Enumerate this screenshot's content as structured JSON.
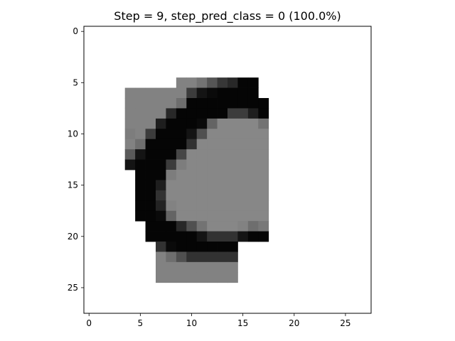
{
  "chart_data": {
    "type": "heatmap",
    "title": "Step = 9, step_pred_class = 0 (100.0%)",
    "xlabel": "",
    "ylabel": "",
    "xlim": [
      -0.5,
      27.5
    ],
    "ylim": [
      27.5,
      -0.5
    ],
    "x_ticks": [
      0,
      5,
      10,
      15,
      20,
      25
    ],
    "y_ticks": [
      0,
      5,
      10,
      15,
      20,
      25
    ],
    "grid": false,
    "colormap": "gray_r",
    "blank_color": "#ffffff",
    "rows": 28,
    "cols": 28,
    "comment_pixels": "each entry is [row, col, gray_value 0-255]; unspecified cells are blank/white",
    "pixels": [
      [
        5,
        9,
        130
      ],
      [
        5,
        10,
        130
      ],
      [
        5,
        11,
        115
      ],
      [
        5,
        12,
        85
      ],
      [
        5,
        13,
        55
      ],
      [
        5,
        14,
        40
      ],
      [
        5,
        15,
        5
      ],
      [
        5,
        16,
        5
      ],
      [
        6,
        4,
        130
      ],
      [
        6,
        5,
        130
      ],
      [
        6,
        6,
        130
      ],
      [
        6,
        7,
        130
      ],
      [
        6,
        8,
        130
      ],
      [
        6,
        9,
        130
      ],
      [
        6,
        10,
        60
      ],
      [
        6,
        11,
        20
      ],
      [
        6,
        12,
        10
      ],
      [
        6,
        13,
        5
      ],
      [
        6,
        14,
        5
      ],
      [
        6,
        15,
        5
      ],
      [
        6,
        16,
        5
      ],
      [
        7,
        4,
        130
      ],
      [
        7,
        5,
        130
      ],
      [
        7,
        6,
        130
      ],
      [
        7,
        7,
        130
      ],
      [
        7,
        8,
        130
      ],
      [
        7,
        9,
        110
      ],
      [
        7,
        10,
        5
      ],
      [
        7,
        11,
        5
      ],
      [
        7,
        12,
        5
      ],
      [
        7,
        13,
        5
      ],
      [
        7,
        14,
        5
      ],
      [
        7,
        15,
        5
      ],
      [
        7,
        16,
        5
      ],
      [
        7,
        17,
        5
      ],
      [
        8,
        4,
        130
      ],
      [
        8,
        5,
        130
      ],
      [
        8,
        6,
        130
      ],
      [
        8,
        7,
        130
      ],
      [
        8,
        8,
        40
      ],
      [
        8,
        9,
        5
      ],
      [
        8,
        10,
        5
      ],
      [
        8,
        11,
        5
      ],
      [
        8,
        12,
        5
      ],
      [
        8,
        13,
        5
      ],
      [
        8,
        14,
        60
      ],
      [
        8,
        15,
        60
      ],
      [
        8,
        16,
        30
      ],
      [
        8,
        17,
        5
      ],
      [
        9,
        4,
        130
      ],
      [
        9,
        5,
        130
      ],
      [
        9,
        6,
        130
      ],
      [
        9,
        7,
        30
      ],
      [
        9,
        8,
        5
      ],
      [
        9,
        9,
        5
      ],
      [
        9,
        10,
        5
      ],
      [
        9,
        11,
        10
      ],
      [
        9,
        12,
        100
      ],
      [
        9,
        13,
        135
      ],
      [
        9,
        14,
        135
      ],
      [
        9,
        15,
        135
      ],
      [
        9,
        16,
        135
      ],
      [
        9,
        17,
        115
      ],
      [
        10,
        4,
        125
      ],
      [
        10,
        5,
        130
      ],
      [
        10,
        6,
        60
      ],
      [
        10,
        7,
        5
      ],
      [
        10,
        8,
        5
      ],
      [
        10,
        9,
        5
      ],
      [
        10,
        10,
        20
      ],
      [
        10,
        11,
        80
      ],
      [
        10,
        12,
        135
      ],
      [
        10,
        13,
        135
      ],
      [
        10,
        14,
        135
      ],
      [
        10,
        15,
        135
      ],
      [
        10,
        16,
        135
      ],
      [
        10,
        17,
        135
      ],
      [
        11,
        4,
        130
      ],
      [
        11,
        5,
        110
      ],
      [
        11,
        6,
        5
      ],
      [
        11,
        7,
        5
      ],
      [
        11,
        8,
        5
      ],
      [
        11,
        9,
        5
      ],
      [
        11,
        10,
        50
      ],
      [
        11,
        11,
        135
      ],
      [
        11,
        12,
        135
      ],
      [
        11,
        13,
        135
      ],
      [
        11,
        14,
        135
      ],
      [
        11,
        15,
        135
      ],
      [
        11,
        16,
        135
      ],
      [
        11,
        17,
        135
      ],
      [
        12,
        4,
        90
      ],
      [
        12,
        5,
        20
      ],
      [
        12,
        6,
        5
      ],
      [
        12,
        7,
        5
      ],
      [
        12,
        8,
        5
      ],
      [
        12,
        9,
        70
      ],
      [
        12,
        10,
        135
      ],
      [
        12,
        11,
        135
      ],
      [
        12,
        12,
        135
      ],
      [
        12,
        13,
        135
      ],
      [
        12,
        14,
        135
      ],
      [
        12,
        15,
        135
      ],
      [
        12,
        16,
        135
      ],
      [
        12,
        17,
        135
      ],
      [
        13,
        4,
        20
      ],
      [
        13,
        5,
        5
      ],
      [
        13,
        6,
        5
      ],
      [
        13,
        7,
        5
      ],
      [
        13,
        8,
        60
      ],
      [
        13,
        9,
        125
      ],
      [
        13,
        10,
        135
      ],
      [
        13,
        11,
        135
      ],
      [
        13,
        12,
        135
      ],
      [
        13,
        13,
        135
      ],
      [
        13,
        14,
        135
      ],
      [
        13,
        15,
        135
      ],
      [
        13,
        16,
        135
      ],
      [
        13,
        17,
        135
      ],
      [
        14,
        5,
        5
      ],
      [
        14,
        6,
        5
      ],
      [
        14,
        7,
        5
      ],
      [
        14,
        8,
        125
      ],
      [
        14,
        9,
        135
      ],
      [
        14,
        10,
        135
      ],
      [
        14,
        11,
        135
      ],
      [
        14,
        12,
        135
      ],
      [
        14,
        13,
        135
      ],
      [
        14,
        14,
        135
      ],
      [
        14,
        15,
        135
      ],
      [
        14,
        16,
        135
      ],
      [
        14,
        17,
        135
      ],
      [
        15,
        5,
        5
      ],
      [
        15,
        6,
        5
      ],
      [
        15,
        7,
        30
      ],
      [
        15,
        8,
        135
      ],
      [
        15,
        9,
        135
      ],
      [
        15,
        10,
        135
      ],
      [
        15,
        11,
        135
      ],
      [
        15,
        12,
        135
      ],
      [
        15,
        13,
        135
      ],
      [
        15,
        14,
        135
      ],
      [
        15,
        15,
        135
      ],
      [
        15,
        16,
        135
      ],
      [
        15,
        17,
        135
      ],
      [
        16,
        5,
        5
      ],
      [
        16,
        6,
        5
      ],
      [
        16,
        7,
        50
      ],
      [
        16,
        8,
        135
      ],
      [
        16,
        9,
        135
      ],
      [
        16,
        10,
        135
      ],
      [
        16,
        11,
        135
      ],
      [
        16,
        12,
        135
      ],
      [
        16,
        13,
        135
      ],
      [
        16,
        14,
        135
      ],
      [
        16,
        15,
        135
      ],
      [
        16,
        16,
        135
      ],
      [
        16,
        17,
        135
      ],
      [
        17,
        5,
        5
      ],
      [
        17,
        6,
        5
      ],
      [
        17,
        7,
        35
      ],
      [
        17,
        8,
        130
      ],
      [
        17,
        9,
        135
      ],
      [
        17,
        10,
        135
      ],
      [
        17,
        11,
        135
      ],
      [
        17,
        12,
        135
      ],
      [
        17,
        13,
        135
      ],
      [
        17,
        14,
        135
      ],
      [
        17,
        15,
        135
      ],
      [
        17,
        16,
        135
      ],
      [
        17,
        17,
        135
      ],
      [
        18,
        5,
        5
      ],
      [
        18,
        6,
        5
      ],
      [
        18,
        7,
        10
      ],
      [
        18,
        8,
        100
      ],
      [
        18,
        9,
        135
      ],
      [
        18,
        10,
        135
      ],
      [
        18,
        11,
        135
      ],
      [
        18,
        12,
        135
      ],
      [
        18,
        13,
        135
      ],
      [
        18,
        14,
        135
      ],
      [
        18,
        15,
        135
      ],
      [
        18,
        16,
        135
      ],
      [
        18,
        17,
        135
      ],
      [
        19,
        6,
        5
      ],
      [
        19,
        7,
        5
      ],
      [
        19,
        8,
        5
      ],
      [
        19,
        9,
        40
      ],
      [
        19,
        10,
        80
      ],
      [
        19,
        11,
        115
      ],
      [
        19,
        12,
        135
      ],
      [
        19,
        13,
        135
      ],
      [
        19,
        14,
        135
      ],
      [
        19,
        15,
        130
      ],
      [
        19,
        16,
        110
      ],
      [
        19,
        17,
        120
      ],
      [
        20,
        6,
        5
      ],
      [
        20,
        7,
        5
      ],
      [
        20,
        8,
        5
      ],
      [
        20,
        9,
        5
      ],
      [
        20,
        10,
        5
      ],
      [
        20,
        11,
        20
      ],
      [
        20,
        12,
        50
      ],
      [
        20,
        13,
        50
      ],
      [
        20,
        14,
        50
      ],
      [
        20,
        15,
        20
      ],
      [
        20,
        16,
        5
      ],
      [
        20,
        17,
        5
      ],
      [
        21,
        7,
        50
      ],
      [
        21,
        8,
        10
      ],
      [
        21,
        9,
        5
      ],
      [
        21,
        10,
        5
      ],
      [
        21,
        11,
        5
      ],
      [
        21,
        12,
        5
      ],
      [
        21,
        13,
        5
      ],
      [
        21,
        14,
        5
      ],
      [
        22,
        7,
        130
      ],
      [
        22,
        8,
        110
      ],
      [
        22,
        9,
        80
      ],
      [
        22,
        10,
        50
      ],
      [
        22,
        11,
        50
      ],
      [
        22,
        12,
        50
      ],
      [
        22,
        13,
        50
      ],
      [
        22,
        14,
        50
      ],
      [
        23,
        7,
        130
      ],
      [
        23,
        8,
        130
      ],
      [
        23,
        9,
        130
      ],
      [
        23,
        10,
        130
      ],
      [
        23,
        11,
        130
      ],
      [
        23,
        12,
        130
      ],
      [
        23,
        13,
        130
      ],
      [
        23,
        14,
        130
      ],
      [
        24,
        7,
        130
      ],
      [
        24,
        8,
        130
      ],
      [
        24,
        9,
        130
      ],
      [
        24,
        10,
        130
      ],
      [
        24,
        11,
        130
      ],
      [
        24,
        12,
        130
      ],
      [
        24,
        13,
        130
      ],
      [
        24,
        14,
        130
      ]
    ]
  }
}
